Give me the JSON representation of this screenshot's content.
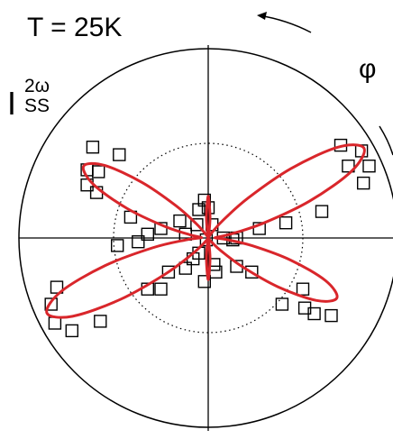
{
  "chart_data": {
    "type": "polar",
    "title": "T = 25K",
    "ylabel": {
      "main": "I",
      "sup": "2ω",
      "sub": "SS"
    },
    "angle_label": "φ",
    "rlim": [
      0,
      1
    ],
    "rticks": [
      0.5
    ],
    "xlim": [
      -1,
      1
    ],
    "ylim": [
      -1,
      1
    ],
    "scatter": {
      "color": "#000000",
      "x": [
        0.7,
        0.81,
        0.85,
        0.82,
        0.74,
        0.6,
        0.41,
        0.27,
        0.15,
        0.08,
        -0.61,
        -0.47,
        -0.64,
        -0.64,
        -0.59,
        -0.58,
        -0.41,
        -0.32,
        -0.25,
        -0.15,
        -0.12,
        -0.02,
        0.0,
        -0.05,
        -0.06,
        0.02,
        -0.01,
        -0.05,
        -0.08,
        0.03,
        0.04,
        -0.02,
        -0.12,
        -0.8,
        -0.83,
        -0.81,
        -0.72,
        -0.57,
        -0.32,
        -0.25,
        -0.21,
        -0.48,
        -0.37,
        0.39,
        0.51,
        0.56,
        0.65,
        0.5,
        0.23,
        0.15,
        0.13
      ],
      "y": [
        0.49,
        0.46,
        0.38,
        0.29,
        0.38,
        0.14,
        0.08,
        0.05,
        0.0,
        0.0,
        0.48,
        0.44,
        0.36,
        0.28,
        0.24,
        0.35,
        0.11,
        0.02,
        0.05,
        0.09,
        0.02,
        0.2,
        0.16,
        0.15,
        0.07,
        0.07,
        -0.01,
        -0.08,
        -0.11,
        -0.14,
        -0.18,
        -0.23,
        -0.16,
        -0.26,
        -0.35,
        -0.45,
        -0.49,
        -0.44,
        -0.27,
        -0.27,
        -0.18,
        -0.04,
        -0.02,
        -0.35,
        -0.37,
        -0.4,
        -0.41,
        -0.27,
        -0.18,
        -0.15,
        -0.01
      ]
    },
    "fit": {
      "color": "#d9262b",
      "theta": [
        0,
        5,
        10,
        15,
        20,
        25,
        30,
        35,
        40,
        45,
        50,
        55,
        60,
        65,
        70,
        75,
        80,
        85,
        90,
        95,
        100,
        105,
        110,
        115,
        120,
        125,
        130,
        135,
        140,
        145,
        150,
        155,
        160,
        165,
        170,
        175,
        180,
        185,
        190,
        195,
        200,
        205,
        210,
        215,
        220,
        225,
        230,
        235,
        240,
        245,
        250,
        255,
        260,
        265,
        270,
        275,
        280,
        285,
        290,
        295,
        300,
        305,
        310,
        315,
        320,
        325,
        330,
        335,
        340,
        345,
        350,
        355
      ],
      "r": [
        0.041,
        0.047,
        0.124,
        0.3,
        0.57,
        0.836,
        0.95,
        0.836,
        0.57,
        0.3,
        0.124,
        0.039,
        0.01,
        0,
        0,
        0,
        0.013,
        0.11,
        0.22,
        0.11,
        0.013,
        0,
        0,
        0,
        0.008,
        0.031,
        0.099,
        0.241,
        0.456,
        0.669,
        0.76,
        0.669,
        0.456,
        0.241,
        0.099,
        0.04,
        0.047,
        0.122,
        0.298,
        0.564,
        0.827,
        0.94,
        0.827,
        0.564,
        0.298,
        0.122,
        0.039,
        0.009,
        0,
        0,
        0,
        0,
        0.013,
        0.11,
        0.22,
        0.11,
        0.013,
        0,
        0,
        0,
        0,
        0.008,
        0.031,
        0.098,
        0.238,
        0.45,
        0.66,
        0.75,
        0.66,
        0.45,
        0.238,
        0.098
      ]
    }
  }
}
